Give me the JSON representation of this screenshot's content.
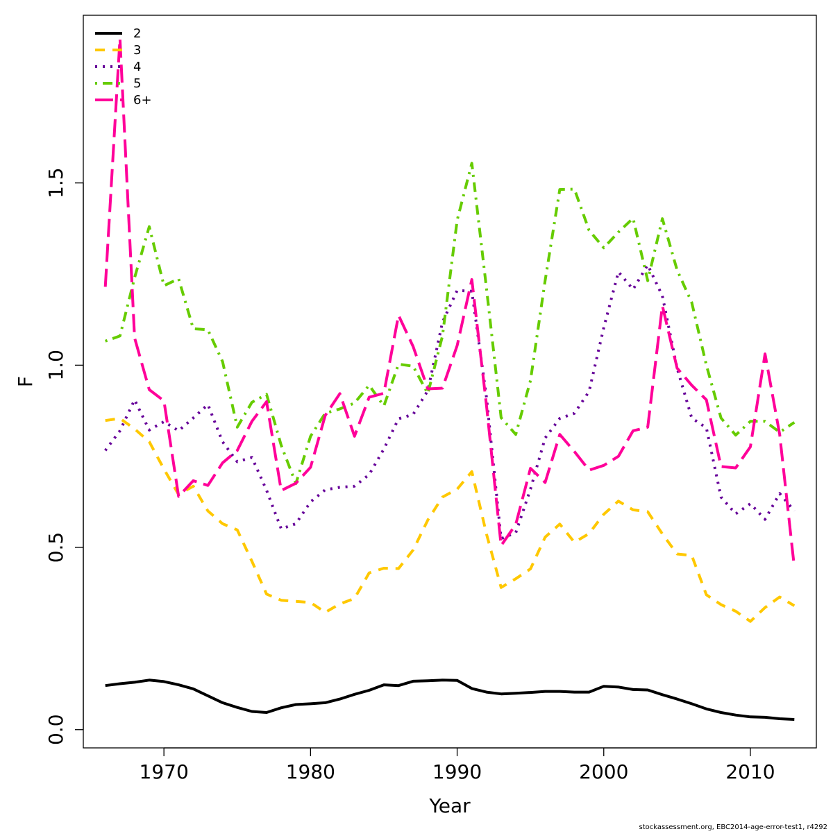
{
  "chart_data": {
    "type": "line",
    "xlabel": "Year",
    "ylabel": "F",
    "xlim": [
      1964.5,
      2014.5
    ],
    "ylim": [
      -0.05,
      1.96
    ],
    "xticks": [
      1970,
      1980,
      1990,
      2000,
      2010
    ],
    "yticks": [
      0.0,
      0.5,
      1.0,
      1.5
    ],
    "ytick_labels": [
      "0.0",
      "0.5",
      "1.0",
      "1.5"
    ],
    "legend_position": "top-left",
    "x": [
      1966,
      1967,
      1968,
      1969,
      1970,
      1971,
      1972,
      1973,
      1974,
      1975,
      1976,
      1977,
      1978,
      1979,
      1980,
      1981,
      1982,
      1983,
      1984,
      1985,
      1986,
      1987,
      1988,
      1989,
      1990,
      1991,
      1992,
      1993,
      1994,
      1995,
      1996,
      1997,
      1998,
      1999,
      2000,
      2001,
      2002,
      2003,
      2004,
      2005,
      2006,
      2007,
      2008,
      2009,
      2010,
      2011,
      2012,
      2013
    ],
    "series": [
      {
        "name": "2",
        "color": "#000000",
        "dash": "solid",
        "values": [
          0.121,
          0.126,
          0.13,
          0.136,
          0.132,
          0.123,
          0.112,
          0.093,
          0.074,
          0.061,
          0.05,
          0.047,
          0.06,
          0.069,
          0.071,
          0.074,
          0.084,
          0.097,
          0.108,
          0.123,
          0.121,
          0.133,
          0.134,
          0.136,
          0.135,
          0.113,
          0.103,
          0.098,
          0.1,
          0.102,
          0.105,
          0.105,
          0.103,
          0.103,
          0.119,
          0.117,
          0.11,
          0.109,
          0.096,
          0.084,
          0.071,
          0.057,
          0.047,
          0.04,
          0.035,
          0.034,
          0.03,
          0.028
        ]
      },
      {
        "name": "3",
        "color": "#ffc800",
        "dash": "dashed",
        "values": [
          0.848,
          0.854,
          0.825,
          0.79,
          0.715,
          0.645,
          0.668,
          0.6,
          0.565,
          0.548,
          0.462,
          0.372,
          0.355,
          0.352,
          0.349,
          0.322,
          0.345,
          0.36,
          0.43,
          0.443,
          0.442,
          0.493,
          0.575,
          0.638,
          0.66,
          0.708,
          0.537,
          0.39,
          0.414,
          0.441,
          0.528,
          0.564,
          0.514,
          0.538,
          0.591,
          0.627,
          0.603,
          0.598,
          0.537,
          0.482,
          0.478,
          0.37,
          0.343,
          0.325,
          0.297,
          0.335,
          0.364,
          0.34
        ]
      },
      {
        "name": "4",
        "color": "#660099",
        "dash": "dotted",
        "values": [
          0.766,
          0.82,
          0.905,
          0.822,
          0.845,
          0.82,
          0.855,
          0.892,
          0.79,
          0.735,
          0.747,
          0.657,
          0.551,
          0.565,
          0.625,
          0.658,
          0.665,
          0.668,
          0.7,
          0.77,
          0.853,
          0.865,
          0.93,
          1.118,
          1.205,
          1.203,
          0.912,
          0.524,
          0.54,
          0.66,
          0.8,
          0.854,
          0.868,
          0.928,
          1.103,
          1.256,
          1.208,
          1.275,
          1.19,
          0.992,
          0.855,
          0.828,
          0.638,
          0.592,
          0.62,
          0.577,
          0.648,
          0.6
        ]
      },
      {
        "name": "5",
        "color": "#66cc00",
        "dash": "dotdash",
        "values": [
          1.066,
          1.08,
          1.24,
          1.38,
          1.218,
          1.237,
          1.1,
          1.097,
          1.01,
          0.83,
          0.898,
          0.92,
          0.78,
          0.675,
          0.805,
          0.868,
          0.88,
          0.896,
          0.945,
          0.888,
          1.003,
          0.997,
          0.922,
          1.08,
          1.398,
          1.554,
          1.211,
          0.856,
          0.81,
          0.958,
          1.232,
          1.482,
          1.483,
          1.37,
          1.322,
          1.365,
          1.403,
          1.232,
          1.402,
          1.261,
          1.172,
          1.0,
          0.855,
          0.808,
          0.846,
          0.846,
          0.816,
          0.843
        ]
      },
      {
        "name": "6+",
        "color": "#ff0099",
        "dash": "longdash",
        "values": [
          1.215,
          1.896,
          1.075,
          0.933,
          0.902,
          0.64,
          0.683,
          0.67,
          0.732,
          0.766,
          0.846,
          0.9,
          0.656,
          0.676,
          0.72,
          0.862,
          0.922,
          0.805,
          0.912,
          0.923,
          1.137,
          1.051,
          0.935,
          0.937,
          1.054,
          1.235,
          0.89,
          0.505,
          0.563,
          0.717,
          0.678,
          0.81,
          0.763,
          0.712,
          0.725,
          0.75,
          0.82,
          0.83,
          1.163,
          0.992,
          0.945,
          0.905,
          0.722,
          0.718,
          0.776,
          1.031,
          0.81,
          0.445
        ]
      }
    ]
  },
  "footer": "stockassessment.org, EBC2014-age-error-test1, r4292"
}
